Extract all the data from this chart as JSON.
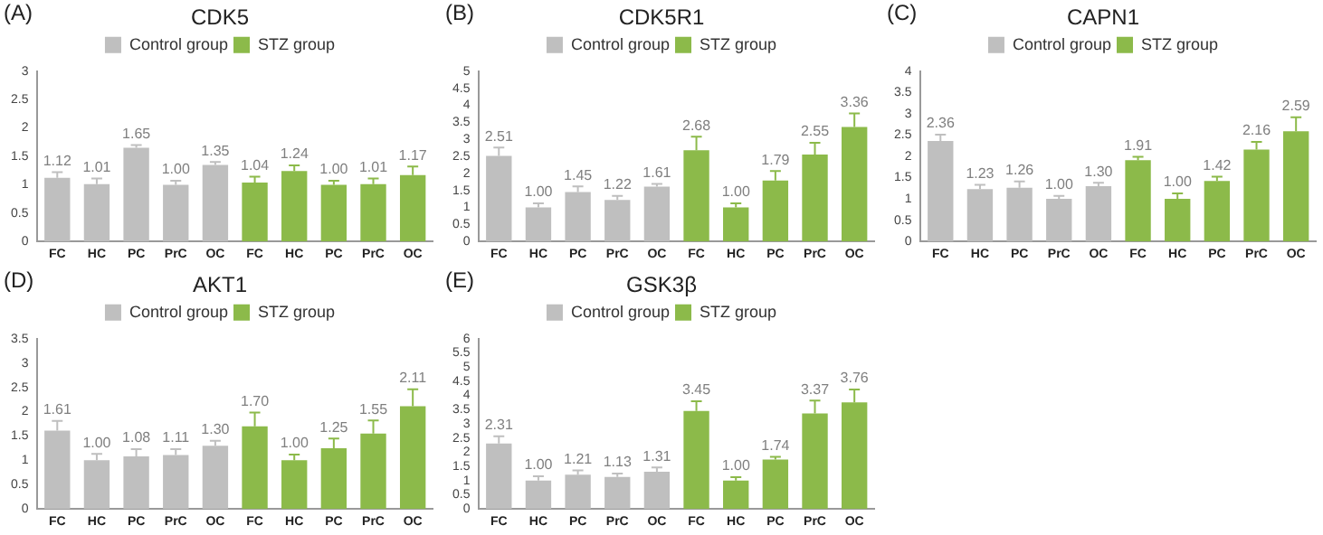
{
  "chart_data": [
    {
      "type": "bar",
      "title": "CDK5",
      "annotations": [
        "(A)"
      ],
      "categories": [
        "FC",
        "HC",
        "PC",
        "PrC",
        "OC",
        "FC",
        "HC",
        "PC",
        "PrC",
        "OC"
      ],
      "ylim": [
        0,
        3
      ],
      "yticks": [
        0,
        0.5,
        1,
        1.5,
        2,
        2.5,
        3
      ],
      "legend": "top",
      "grid": false,
      "series": [
        {
          "name": "Control group",
          "color": "#bfbfbf",
          "values": [
            1.12,
            1.01,
            1.65,
            1.0,
            1.35,
            null,
            null,
            null,
            null,
            null
          ],
          "errors": [
            0.1,
            0.1,
            0.05,
            0.07,
            0.05,
            null,
            null,
            null,
            null,
            null
          ],
          "value_labels": [
            "1.12",
            "1.01",
            "1.65",
            "1.00",
            "1.35",
            null,
            null,
            null,
            null,
            null
          ]
        },
        {
          "name": "STZ group",
          "color": "#8cba4a",
          "values": [
            null,
            null,
            null,
            null,
            null,
            1.04,
            1.24,
            1.0,
            1.01,
            1.17
          ],
          "errors": [
            null,
            null,
            null,
            null,
            null,
            0.1,
            0.1,
            0.07,
            0.1,
            0.15
          ],
          "value_labels": [
            null,
            null,
            null,
            null,
            null,
            "1.04",
            "1.24",
            "1.00",
            "1.01",
            "1.17"
          ]
        }
      ]
    },
    {
      "type": "bar",
      "title": "CDK5R1",
      "annotations": [
        "(B)"
      ],
      "categories": [
        "FC",
        "HC",
        "PC",
        "PrC",
        "OC",
        "FC",
        "HC",
        "PC",
        "PrC",
        "OC"
      ],
      "ylim": [
        0,
        5
      ],
      "yticks": [
        0,
        0.5,
        1,
        1.5,
        2,
        2.5,
        3,
        3.5,
        4,
        4.5,
        5
      ],
      "legend": "top",
      "grid": false,
      "series": [
        {
          "name": "Control group",
          "color": "#bfbfbf",
          "values": [
            2.51,
            1.0,
            1.45,
            1.22,
            1.61,
            null,
            null,
            null,
            null,
            null
          ],
          "errors": [
            0.25,
            0.12,
            0.17,
            0.12,
            0.08,
            null,
            null,
            null,
            null,
            null
          ],
          "value_labels": [
            "2.51",
            "1.00",
            "1.45",
            "1.22",
            "1.61",
            null,
            null,
            null,
            null,
            null
          ]
        },
        {
          "name": "STZ group",
          "color": "#8cba4a",
          "values": [
            null,
            null,
            null,
            null,
            null,
            2.68,
            1.0,
            1.79,
            2.55,
            3.36
          ],
          "errors": [
            null,
            null,
            null,
            null,
            null,
            0.4,
            0.12,
            0.28,
            0.35,
            0.4
          ],
          "value_labels": [
            null,
            null,
            null,
            null,
            null,
            "2.68",
            "1.00",
            "1.79",
            "2.55",
            "3.36"
          ]
        }
      ]
    },
    {
      "type": "bar",
      "title": "CAPN1",
      "annotations": [
        "(C)"
      ],
      "categories": [
        "FC",
        "HC",
        "PC",
        "PrC",
        "OC",
        "FC",
        "HC",
        "PC",
        "PrC",
        "OC"
      ],
      "ylim": [
        0,
        4
      ],
      "yticks": [
        0,
        0.5,
        1,
        1.5,
        2,
        2.5,
        3,
        3.5,
        4
      ],
      "legend": "top",
      "grid": false,
      "series": [
        {
          "name": "Control group",
          "color": "#bfbfbf",
          "values": [
            2.36,
            1.23,
            1.26,
            1.0,
            1.3,
            null,
            null,
            null,
            null,
            null
          ],
          "errors": [
            0.15,
            0.1,
            0.15,
            0.07,
            0.08,
            null,
            null,
            null,
            null,
            null
          ],
          "value_labels": [
            "2.36",
            "1.23",
            "1.26",
            "1.00",
            "1.30",
            null,
            null,
            null,
            null,
            null
          ]
        },
        {
          "name": "STZ group",
          "color": "#8cba4a",
          "values": [
            null,
            null,
            null,
            null,
            null,
            1.91,
            1.0,
            1.42,
            2.16,
            2.59
          ],
          "errors": [
            null,
            null,
            null,
            null,
            null,
            0.08,
            0.13,
            0.1,
            0.18,
            0.33
          ],
          "value_labels": [
            null,
            null,
            null,
            null,
            null,
            "1.91",
            "1.00",
            "1.42",
            "2.16",
            "2.59"
          ]
        }
      ]
    },
    {
      "type": "bar",
      "title": "AKT1",
      "annotations": [
        "(D)"
      ],
      "categories": [
        "FC",
        "HC",
        "PC",
        "PrC",
        "OC",
        "FC",
        "HC",
        "PC",
        "PrC",
        "OC"
      ],
      "ylim": [
        0,
        3.5
      ],
      "yticks": [
        0,
        0.5,
        1,
        1.5,
        2,
        2.5,
        3,
        3.5
      ],
      "legend": "top",
      "grid": false,
      "series": [
        {
          "name": "Control group",
          "color": "#bfbfbf",
          "values": [
            1.61,
            1.0,
            1.08,
            1.11,
            1.3,
            null,
            null,
            null,
            null,
            null
          ],
          "errors": [
            0.2,
            0.13,
            0.15,
            0.12,
            0.1,
            null,
            null,
            null,
            null,
            null
          ],
          "value_labels": [
            "1.61",
            "1.00",
            "1.08",
            "1.11",
            "1.30",
            null,
            null,
            null,
            null,
            null
          ]
        },
        {
          "name": "STZ group",
          "color": "#8cba4a",
          "values": [
            null,
            null,
            null,
            null,
            null,
            1.7,
            1.0,
            1.25,
            1.55,
            2.11
          ],
          "errors": [
            null,
            null,
            null,
            null,
            null,
            0.28,
            0.12,
            0.2,
            0.27,
            0.35
          ],
          "value_labels": [
            null,
            null,
            null,
            null,
            null,
            "1.70",
            "1.00",
            "1.25",
            "1.55",
            "2.11"
          ]
        }
      ]
    },
    {
      "type": "bar",
      "title": "GSK3β",
      "annotations": [
        "(E)"
      ],
      "categories": [
        "FC",
        "HC",
        "PC",
        "PrC",
        "OC",
        "FC",
        "HC",
        "PC",
        "PrC",
        "OC"
      ],
      "ylim": [
        0,
        6
      ],
      "yticks": [
        0,
        0.5,
        1,
        1.5,
        2,
        2.5,
        3,
        3.5,
        4,
        4.5,
        5,
        5.5,
        6
      ],
      "legend": "top",
      "grid": false,
      "series": [
        {
          "name": "Control group",
          "color": "#bfbfbf",
          "values": [
            2.31,
            1.0,
            1.21,
            1.13,
            1.31,
            null,
            null,
            null,
            null,
            null
          ],
          "errors": [
            0.25,
            0.15,
            0.15,
            0.12,
            0.15,
            null,
            null,
            null,
            null,
            null
          ],
          "value_labels": [
            "2.31",
            "1.00",
            "1.21",
            "1.13",
            "1.31",
            null,
            null,
            null,
            null,
            null
          ]
        },
        {
          "name": "STZ group",
          "color": "#8cba4a",
          "values": [
            null,
            null,
            null,
            null,
            null,
            3.45,
            1.0,
            1.74,
            3.37,
            3.76
          ],
          "errors": [
            null,
            null,
            null,
            null,
            null,
            0.35,
            0.12,
            0.1,
            0.45,
            0.45
          ],
          "value_labels": [
            null,
            null,
            null,
            null,
            null,
            "3.45",
            "1.00",
            "1.74",
            "3.37",
            "3.76"
          ]
        }
      ]
    }
  ]
}
